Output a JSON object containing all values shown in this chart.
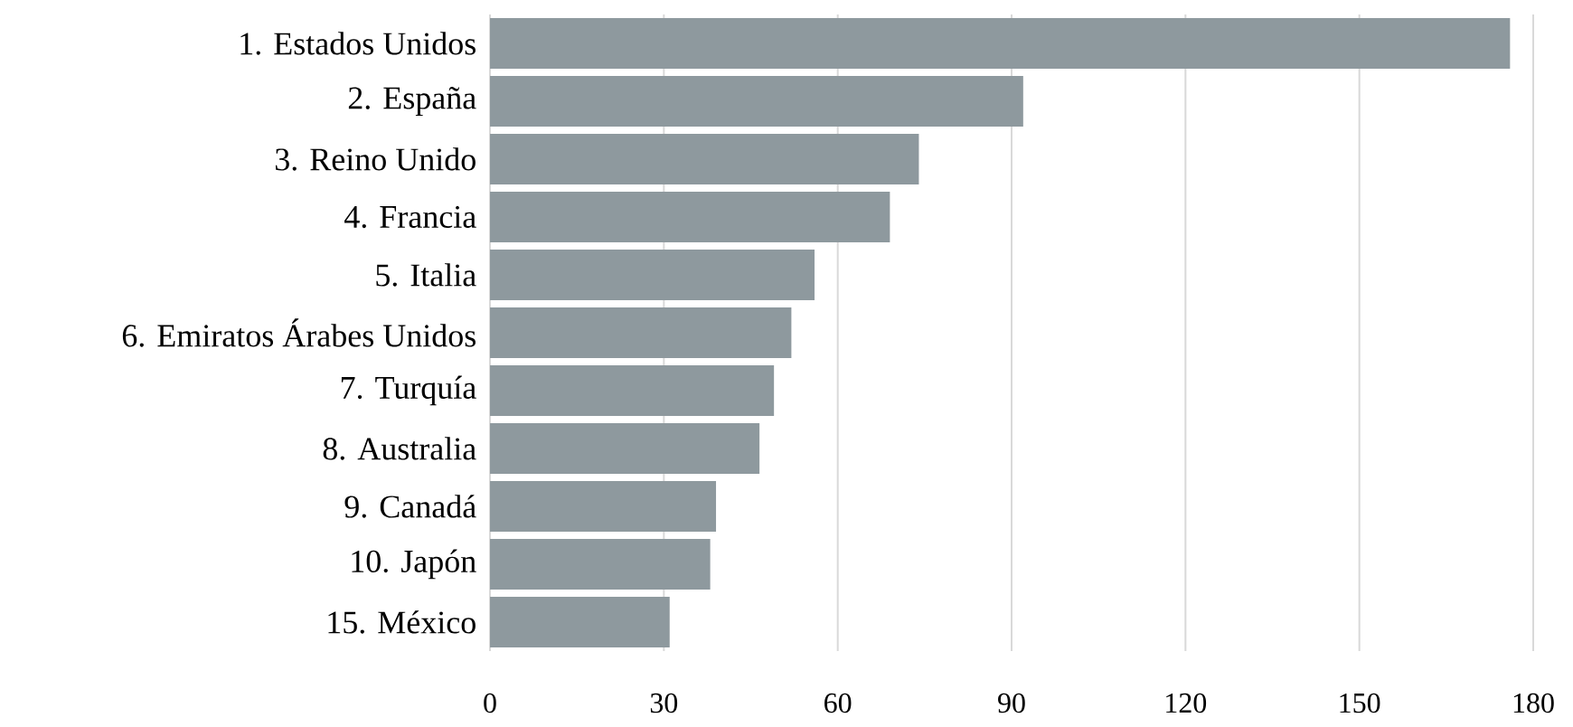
{
  "chart_data": {
    "type": "bar",
    "orientation": "horizontal",
    "categories": [
      "1. Estados Unidos",
      "2. España",
      "3. Reino Unido",
      "4. Francia",
      "5. Italia",
      "6. Emiratos Árabes Unidos",
      "7. Turquía",
      "8. Australia",
      "9. Canadá",
      "10. Japón",
      "15. México"
    ],
    "values": [
      176,
      92,
      74,
      69,
      56,
      52,
      49,
      46.5,
      39,
      38,
      31
    ],
    "color": "#8e999e",
    "xlim": [
      0,
      180
    ],
    "xticks": [
      0,
      30,
      60,
      90,
      120,
      150,
      180
    ],
    "grid": "x"
  }
}
